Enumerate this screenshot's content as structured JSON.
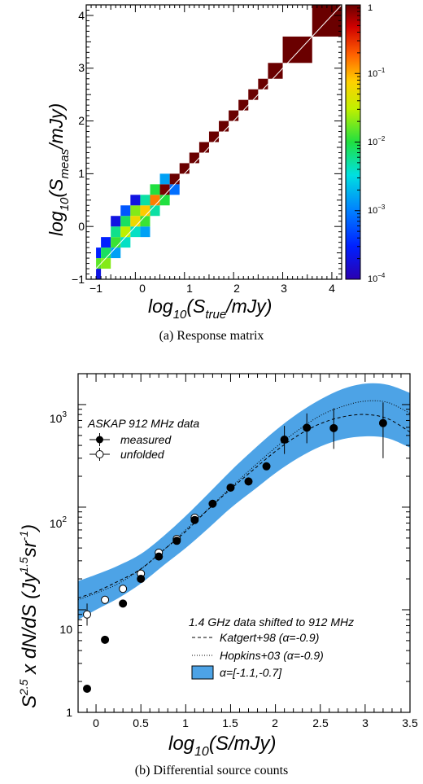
{
  "chart_data": [
    {
      "type": "heatmap",
      "caption": "(a) Response matrix",
      "xlabel": {
        "prefix": "log",
        "sub1": "10",
        "mid": "(S",
        "sub2": "true",
        "suffix": "/mJy)"
      },
      "ylabel": {
        "prefix": "log",
        "sub1": "10",
        "mid": "(S",
        "sub2": "meas",
        "suffix": "/mJy)"
      },
      "xlim": [
        -1,
        4.2
      ],
      "ylim": [
        -1,
        4.2
      ],
      "xticks": [
        "−1",
        "0",
        "1",
        "2",
        "3",
        "4"
      ],
      "yticks": [
        "−1",
        "0",
        "1",
        "2",
        "3",
        "4"
      ],
      "colorbar": {
        "scale": "log",
        "range": [
          0.0001,
          1
        ],
        "ticks": [
          {
            "base": "1",
            "exp": ""
          },
          {
            "base": "10",
            "exp": "−1"
          },
          {
            "base": "10",
            "exp": "−2"
          },
          {
            "base": "10",
            "exp": "−3"
          },
          {
            "base": "10",
            "exp": "−4"
          }
        ]
      },
      "cells": [
        {
          "x0": -0.8,
          "x1": -0.7,
          "y0": -1.0,
          "y1": -0.8,
          "v": 0.0002
        },
        {
          "x0": -0.8,
          "x1": -0.7,
          "y0": -0.8,
          "y1": -0.6,
          "v": 0.015
        },
        {
          "x0": -0.8,
          "x1": -0.7,
          "y0": -0.6,
          "y1": -0.4,
          "v": 0.0003
        },
        {
          "x0": -0.7,
          "x1": -0.5,
          "y0": -0.8,
          "y1": -0.6,
          "v": 0.02
        },
        {
          "x0": -0.7,
          "x1": -0.5,
          "y0": -0.6,
          "y1": -0.4,
          "v": 0.008
        },
        {
          "x0": -0.7,
          "x1": -0.5,
          "y0": -0.4,
          "y1": -0.2,
          "v": 0.0003
        },
        {
          "x0": -0.5,
          "x1": -0.3,
          "y0": -0.6,
          "y1": -0.4,
          "v": 0.0015
        },
        {
          "x0": -0.5,
          "x1": -0.3,
          "y0": -0.4,
          "y1": -0.2,
          "v": 0.012
        },
        {
          "x0": -0.5,
          "x1": -0.3,
          "y0": -0.2,
          "y1": 0.0,
          "v": 0.006
        },
        {
          "x0": -0.5,
          "x1": -0.3,
          "y0": 0.0,
          "y1": 0.2,
          "v": 0.0002
        },
        {
          "x0": -0.3,
          "x1": -0.1,
          "y0": -0.4,
          "y1": -0.2,
          "v": 0.004
        },
        {
          "x0": -0.3,
          "x1": -0.1,
          "y0": -0.2,
          "y1": 0.0,
          "v": 0.03
        },
        {
          "x0": -0.3,
          "x1": -0.1,
          "y0": 0.0,
          "y1": 0.2,
          "v": 0.008
        },
        {
          "x0": -0.3,
          "x1": -0.1,
          "y0": 0.2,
          "y1": 0.4,
          "v": 0.0006
        },
        {
          "x0": -0.1,
          "x1": 0.1,
          "y0": -0.2,
          "y1": 0.0,
          "v": 0.004
        },
        {
          "x0": -0.1,
          "x1": 0.1,
          "y0": 0.0,
          "y1": 0.2,
          "v": 0.06
        },
        {
          "x0": -0.1,
          "x1": 0.1,
          "y0": 0.2,
          "y1": 0.4,
          "v": 0.02
        },
        {
          "x0": -0.1,
          "x1": 0.1,
          "y0": 0.4,
          "y1": 0.6,
          "v": 0.0002
        },
        {
          "x0": 0.1,
          "x1": 0.3,
          "y0": -0.2,
          "y1": 0.0,
          "v": 0.0015
        },
        {
          "x0": 0.1,
          "x1": 0.3,
          "y0": 0.0,
          "y1": 0.2,
          "v": 0.012
        },
        {
          "x0": 0.1,
          "x1": 0.3,
          "y0": 0.2,
          "y1": 0.4,
          "v": 0.08
        },
        {
          "x0": 0.1,
          "x1": 0.3,
          "y0": 0.4,
          "y1": 0.6,
          "v": 0.005
        },
        {
          "x0": 0.3,
          "x1": 0.5,
          "y0": 0.2,
          "y1": 0.4,
          "v": 0.005
        },
        {
          "x0": 0.3,
          "x1": 0.5,
          "y0": 0.4,
          "y1": 0.6,
          "v": 0.15
        },
        {
          "x0": 0.3,
          "x1": 0.5,
          "y0": 0.6,
          "y1": 0.8,
          "v": 0.01
        },
        {
          "x0": 0.5,
          "x1": 0.7,
          "y0": 0.4,
          "y1": 0.6,
          "v": 0.01
        },
        {
          "x0": 0.5,
          "x1": 0.7,
          "y0": 0.6,
          "y1": 0.8,
          "v": 0.9
        },
        {
          "x0": 0.5,
          "x1": 0.7,
          "y0": 0.8,
          "y1": 1.0,
          "v": 0.0015
        },
        {
          "x0": 0.7,
          "x1": 0.9,
          "y0": 0.6,
          "y1": 0.8,
          "v": 0.0008
        },
        {
          "x0": 0.7,
          "x1": 0.9,
          "y0": 0.8,
          "y1": 1.0,
          "v": 1.0
        },
        {
          "x0": 0.9,
          "x1": 1.1,
          "y0": 1.0,
          "y1": 1.2,
          "v": 1.0
        },
        {
          "x0": 1.1,
          "x1": 1.3,
          "y0": 1.2,
          "y1": 1.4,
          "v": 1.0
        },
        {
          "x0": 1.3,
          "x1": 1.5,
          "y0": 1.4,
          "y1": 1.6,
          "v": 1.0
        },
        {
          "x0": 1.5,
          "x1": 1.7,
          "y0": 1.6,
          "y1": 1.8,
          "v": 1.0
        },
        {
          "x0": 1.7,
          "x1": 1.9,
          "y0": 1.8,
          "y1": 2.0,
          "v": 1.0
        },
        {
          "x0": 1.9,
          "x1": 2.1,
          "y0": 2.0,
          "y1": 2.2,
          "v": 1.0
        },
        {
          "x0": 2.1,
          "x1": 2.3,
          "y0": 2.2,
          "y1": 2.4,
          "v": 1.0
        },
        {
          "x0": 2.3,
          "x1": 2.5,
          "y0": 2.4,
          "y1": 2.6,
          "v": 1.0
        },
        {
          "x0": 2.5,
          "x1": 2.7,
          "y0": 2.6,
          "y1": 2.8,
          "v": 1.0
        },
        {
          "x0": 2.7,
          "x1": 3.0,
          "y0": 2.8,
          "y1": 3.1,
          "v": 1.0
        },
        {
          "x0": 3.0,
          "x1": 3.6,
          "y0": 3.1,
          "y1": 3.6,
          "v": 1.0
        },
        {
          "x0": 3.6,
          "x1": 4.2,
          "y0": 3.6,
          "y1": 4.2,
          "v": 1.0
        }
      ]
    },
    {
      "type": "scatter",
      "caption": "(b) Differential source counts",
      "xlabel": "log₁₀(S/mJy)",
      "xlabel_parts": {
        "prefix": "log",
        "sub": "10",
        "suffix": "(S/mJy)"
      },
      "ylabel_parts": {
        "s": "S",
        "sexp": "2.5",
        "mid": " x dN/dS (Jy",
        "jyexp": "1.5",
        "sr": "sr",
        "srexp": "-1",
        "end": ")"
      },
      "xlim": [
        -0.2,
        3.5
      ],
      "ylim": [
        1,
        2000
      ],
      "yscale": "log",
      "xticks": [
        "0",
        "0.5",
        "1",
        "1.5",
        "2",
        "2.5",
        "3",
        "3.5"
      ],
      "yticks": [
        {
          "text": "1",
          "exp": "",
          "v": 1
        },
        {
          "text": "10",
          "exp": "",
          "v": 10
        },
        {
          "text": "10",
          "exp": "2",
          "v": 100
        },
        {
          "text": "10",
          "exp": "3",
          "v": 1000
        }
      ],
      "legend_top": {
        "title": "ASKAP 912 MHz data",
        "entries": [
          "measured",
          "unfolded"
        ]
      },
      "legend_bottom": {
        "title": "1.4 GHz data shifted to 912 MHz",
        "entries": [
          "Katgert+98 (α=-0.9)",
          "Hopkins+03 (α=-0.9)",
          "α=[-1.1,-0.7]"
        ]
      },
      "colors": {
        "band": "#4da3e6",
        "band_edge": "#2e7cc2"
      },
      "series": [
        {
          "name": "measured",
          "points": [
            {
              "x": -0.1,
              "y": 1.7
            },
            {
              "x": 0.1,
              "y": 5.1
            },
            {
              "x": 0.3,
              "y": 11.5
            },
            {
              "x": 0.5,
              "y": 20
            },
            {
              "x": 0.7,
              "y": 33
            },
            {
              "x": 0.9,
              "y": 47
            },
            {
              "x": 1.1,
              "y": 75
            },
            {
              "x": 1.3,
              "y": 108
            },
            {
              "x": 1.5,
              "y": 155
            },
            {
              "x": 1.7,
              "y": 178
            },
            {
              "x": 1.9,
              "y": 250
            },
            {
              "x": 2.1,
              "y": 455,
              "lo": 330,
              "hi": 620
            },
            {
              "x": 2.35,
              "y": 595,
              "lo": 420,
              "hi": 820
            },
            {
              "x": 2.65,
              "y": 590,
              "lo": 370,
              "hi": 920
            },
            {
              "x": 3.2,
              "y": 660,
              "lo": 300,
              "hi": 1050
            }
          ]
        },
        {
          "name": "unfolded",
          "points": [
            {
              "x": -0.1,
              "y": 9,
              "lo": 7,
              "hi": 11.5
            },
            {
              "x": 0.1,
              "y": 12.5
            },
            {
              "x": 0.3,
              "y": 16
            },
            {
              "x": 0.5,
              "y": 22.5
            },
            {
              "x": 0.7,
              "y": 36
            },
            {
              "x": 0.9,
              "y": 49
            },
            {
              "x": 1.1,
              "y": 79
            }
          ]
        },
        {
          "name": "Katgert+98 (α=-0.9)",
          "x": [
            -0.2,
            0.0,
            0.25,
            0.5,
            0.75,
            1.0,
            1.25,
            1.5,
            1.75,
            2.0,
            2.25,
            2.5,
            2.75,
            3.0,
            3.25,
            3.5
          ],
          "values": [
            13,
            15,
            19,
            25,
            38,
            58,
            95,
            150,
            230,
            350,
            500,
            650,
            760,
            800,
            730,
            540
          ]
        },
        {
          "name": "Hopkins+03 (α=-0.9)",
          "x": [
            -0.2,
            0.0,
            0.25,
            0.5,
            0.75,
            1.0,
            1.25,
            1.5,
            1.75,
            2.0,
            2.25,
            2.5,
            2.75,
            3.0,
            3.25,
            3.5
          ],
          "values": [
            12.5,
            14.5,
            18,
            25,
            38,
            60,
            96,
            155,
            245,
            380,
            560,
            780,
            960,
            1080,
            1050,
            820
          ]
        },
        {
          "name": "α=[-1.1,-0.7]",
          "x": [
            -0.2,
            0.0,
            0.25,
            0.5,
            0.75,
            1.0,
            1.25,
            1.5,
            1.75,
            2.0,
            2.25,
            2.5,
            2.75,
            3.0,
            3.25,
            3.5
          ],
          "lo": [
            8,
            10,
            13,
            18,
            27,
            40,
            62,
            98,
            145,
            215,
            300,
            390,
            460,
            490,
            470,
            380
          ],
          "hi": [
            19,
            22,
            27,
            35,
            52,
            82,
            135,
            225,
            360,
            560,
            820,
            1120,
            1420,
            1600,
            1560,
            1300
          ]
        }
      ]
    }
  ]
}
